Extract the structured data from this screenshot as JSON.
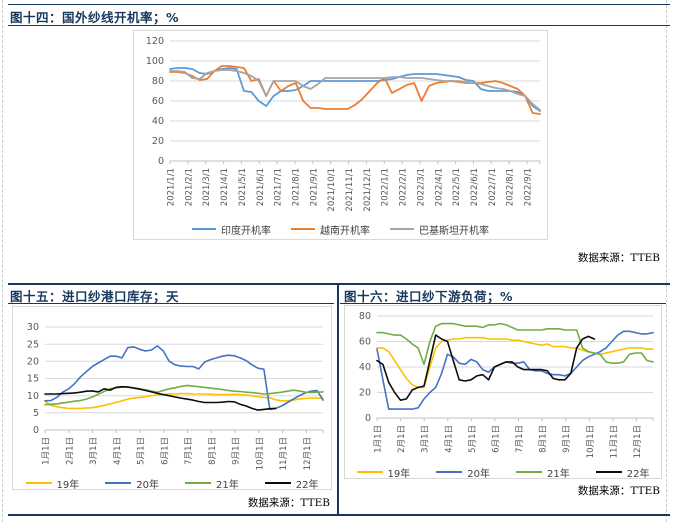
{
  "figures": [
    {
      "title": "图十四：国外纱线开机率；%",
      "source": "数据来源：TTEB"
    },
    {
      "title": "图十五：进口纱港口库存；天",
      "source": "数据来源：TTEB"
    },
    {
      "title": "图十六：进口纱下游负荷；%",
      "source": "数据来源：TTEB"
    }
  ],
  "colors": {
    "navy_border": "#17375E",
    "gridline": "#d9d9d9",
    "axis_line": "#bfbfbf",
    "axis_text": "#595959"
  },
  "chart_data": [
    {
      "type": "line",
      "title": "图十四：国外纱线开机率；%",
      "ylabel": "",
      "unit": "%",
      "ylim": [
        0,
        120
      ],
      "yticks": [
        0,
        20,
        40,
        60,
        80,
        100,
        120
      ],
      "grid": true,
      "legend_position": "bottom",
      "x_tick_labels": [
        "2021/1/1",
        "2021/2/1",
        "2021/3/1",
        "2021/4/1",
        "2021/5/1",
        "2021/6/1",
        "2021/7/1",
        "2021/8/1",
        "2021/9/1",
        "2021/10/1",
        "2021/11/1",
        "2021/12/1",
        "2022/1/1",
        "2022/2/1",
        "2022/3/1",
        "2022/4/1",
        "2022/5/1",
        "2022/6/1",
        "2022/7/1",
        "2022/8/1",
        "2022/9/1"
      ],
      "series": [
        {
          "name": "印度开机率",
          "color": "#5B9BD5",
          "values": [
            92,
            93,
            93,
            92,
            88,
            87,
            90,
            92,
            93,
            92,
            70,
            69,
            60,
            55,
            65,
            70,
            70,
            71,
            75,
            80,
            80,
            80,
            80,
            80,
            80,
            80,
            80,
            80,
            80,
            81,
            82,
            84,
            86,
            87,
            87,
            87,
            87,
            86,
            85,
            84,
            81,
            80,
            72,
            70,
            70,
            70,
            70,
            69,
            65,
            55,
            50
          ]
        },
        {
          "name": "越南开机率",
          "color": "#ED7D31",
          "values": [
            89,
            89,
            88,
            85,
            81,
            82,
            90,
            95,
            95,
            94,
            93,
            80,
            82,
            65,
            80,
            70,
            75,
            78,
            60,
            53,
            53,
            52,
            52,
            52,
            52,
            56,
            62,
            70,
            78,
            83,
            68,
            72,
            76,
            78,
            60,
            75,
            78,
            79,
            80,
            79,
            78,
            78,
            78,
            79,
            80,
            78,
            75,
            72,
            65,
            48,
            47
          ]
        },
        {
          "name": "巴基斯坦开机率",
          "color": "#A5A5A5",
          "values": [
            90,
            90,
            89,
            83,
            82,
            88,
            90,
            91,
            91,
            90,
            88,
            85,
            80,
            65,
            80,
            80,
            80,
            80,
            75,
            72,
            77,
            83,
            83,
            83,
            83,
            83,
            83,
            83,
            83,
            83,
            84,
            84,
            83,
            83,
            83,
            82,
            81,
            80,
            80,
            80,
            79,
            78,
            77,
            75,
            73,
            72,
            70,
            67,
            65,
            57,
            51
          ]
        }
      ]
    },
    {
      "type": "line",
      "title": "图十五：进口纱港口库存；天",
      "ylabel": "",
      "unit": "天",
      "ylim": [
        0,
        30
      ],
      "yticks": [
        0,
        5,
        10,
        15,
        20,
        25,
        30
      ],
      "grid": true,
      "legend_position": "bottom",
      "x_tick_labels": [
        "1月1日",
        "2月1日",
        "3月1日",
        "4月1日",
        "5月1日",
        "6月1日",
        "7月1日",
        "8月1日",
        "9月1日",
        "10月1日",
        "11月1日",
        "12月1日"
      ],
      "series": [
        {
          "name": "19年",
          "color": "#FFC000",
          "values": [
            8.4,
            7.2,
            6.8,
            6.5,
            6.3,
            6.3,
            6.3,
            6.4,
            6.5,
            6.8,
            7.2,
            7.6,
            8.0,
            8.5,
            9.0,
            9.3,
            9.5,
            9.7,
            10.0,
            10.2,
            10.4,
            10.5,
            10.5,
            10.6,
            10.6,
            10.5,
            10.5,
            10.5,
            10.4,
            10.3,
            10.3,
            10.3,
            10.4,
            10.3,
            10.2,
            10.0,
            9.7,
            9.5,
            9.4,
            8.8,
            8.5,
            8.5,
            8.7,
            9.0,
            9.2,
            9.3,
            9.3,
            9.2
          ]
        },
        {
          "name": "20年",
          "color": "#4472C4",
          "values": [
            8.5,
            8.6,
            9.5,
            11.0,
            12.0,
            13.5,
            15.5,
            17.0,
            18.5,
            19.5,
            20.5,
            21.5,
            21.5,
            21.0,
            24.0,
            24.2,
            23.5,
            23.0,
            23.3,
            24.5,
            23.0,
            20.0,
            19.0,
            18.6,
            18.5,
            18.5,
            17.8,
            19.8,
            20.5,
            21.0,
            21.5,
            21.8,
            21.6,
            21.0,
            20.2,
            19.0,
            18.0,
            17.7,
            6.0,
            6.3,
            7.0,
            8.0,
            9.0,
            10.0,
            10.8,
            11.3,
            11.5,
            8.7
          ]
        },
        {
          "name": "21年",
          "color": "#70AD47",
          "values": [
            7.4,
            7.5,
            7.6,
            7.9,
            8.1,
            8.4,
            8.6,
            9.0,
            9.6,
            10.4,
            11.2,
            12.0,
            12.3,
            12.5,
            12.5,
            12.3,
            12.0,
            11.7,
            11.3,
            11.0,
            11.5,
            12.0,
            12.3,
            12.7,
            13.0,
            12.8,
            12.6,
            12.4,
            12.2,
            12.0,
            11.8,
            11.5,
            11.3,
            11.2,
            11.0,
            10.9,
            10.7,
            10.5,
            10.6,
            10.8,
            11.0,
            11.3,
            11.6,
            11.4,
            11.0,
            10.9,
            11.0,
            11.1
          ]
        },
        {
          "name": "22年",
          "color": "#0d0d0d",
          "values": [
            10.5,
            10.5,
            10.5,
            10.6,
            10.7,
            10.8,
            11.0,
            11.3,
            11.4,
            11.1,
            12.0,
            11.6,
            12.4,
            12.6,
            12.5,
            12.2,
            11.9,
            11.5,
            11.1,
            10.7,
            10.3,
            10.0,
            9.6,
            9.3,
            9.0,
            8.7,
            8.3,
            8.0,
            8.0,
            8.0,
            8.1,
            8.3,
            8.2,
            7.5,
            7.0,
            6.3,
            5.8,
            6.0,
            6.2,
            6.3,
            null,
            null,
            null,
            null,
            null,
            null,
            null,
            null
          ]
        }
      ]
    },
    {
      "type": "line",
      "title": "图十六：进口纱下游负荷；%",
      "ylabel": "",
      "unit": "%",
      "ylim": [
        0,
        80
      ],
      "yticks": [
        0,
        20,
        40,
        60,
        80
      ],
      "grid": true,
      "legend_position": "bottom",
      "x_tick_labels": [
        "1月1日",
        "2月1日",
        "3月1日",
        "4月1日",
        "5月1日",
        "6月1日",
        "7月1日",
        "8月1日",
        "9月1日",
        "10月1日",
        "11月1日",
        "12月1日"
      ],
      "series": [
        {
          "name": "19年",
          "color": "#FFC000",
          "values": [
            55,
            55,
            52,
            45,
            38,
            31,
            26,
            24,
            24,
            40,
            55,
            60,
            61,
            62,
            62,
            63,
            63,
            63,
            63,
            62,
            62,
            62,
            62,
            61,
            61,
            60,
            59,
            58,
            57,
            58,
            56,
            56,
            56,
            55,
            55,
            53,
            52,
            51,
            50,
            51,
            52,
            53,
            54,
            55,
            55,
            55,
            54,
            54
          ]
        },
        {
          "name": "20年",
          "color": "#4472C4",
          "values": [
            54,
            30,
            7,
            7,
            7,
            7,
            7,
            8,
            15,
            20,
            24,
            35,
            50,
            48,
            43,
            42,
            46,
            44,
            38,
            36,
            40,
            42,
            44,
            43,
            43,
            44,
            38,
            37,
            37,
            35,
            34,
            34,
            33,
            35,
            40,
            45,
            48,
            50,
            52,
            55,
            60,
            65,
            68,
            68,
            67,
            66,
            66,
            67
          ]
        },
        {
          "name": "21年",
          "color": "#70AD47",
          "values": [
            67,
            67,
            66,
            65,
            65,
            62,
            58,
            55,
            42,
            60,
            72,
            74,
            74,
            74,
            73,
            72,
            72,
            72,
            71,
            73,
            73,
            74,
            73,
            71,
            69,
            69,
            69,
            69,
            69,
            70,
            70,
            70,
            69,
            69,
            69,
            55,
            52,
            51,
            50,
            44,
            43,
            43,
            44,
            50,
            51,
            51,
            45,
            44
          ]
        },
        {
          "name": "22年",
          "color": "#0d0d0d",
          "values": [
            45,
            42,
            28,
            20,
            14,
            15,
            22,
            24,
            25,
            45,
            65,
            62,
            60,
            45,
            30,
            29,
            30,
            33,
            34,
            30,
            40,
            42,
            44,
            44,
            40,
            38,
            38,
            38,
            38,
            37,
            31,
            30,
            30,
            35,
            55,
            62,
            64,
            62,
            null,
            null,
            null,
            null,
            null,
            null,
            null,
            null,
            null,
            null
          ]
        }
      ]
    }
  ]
}
